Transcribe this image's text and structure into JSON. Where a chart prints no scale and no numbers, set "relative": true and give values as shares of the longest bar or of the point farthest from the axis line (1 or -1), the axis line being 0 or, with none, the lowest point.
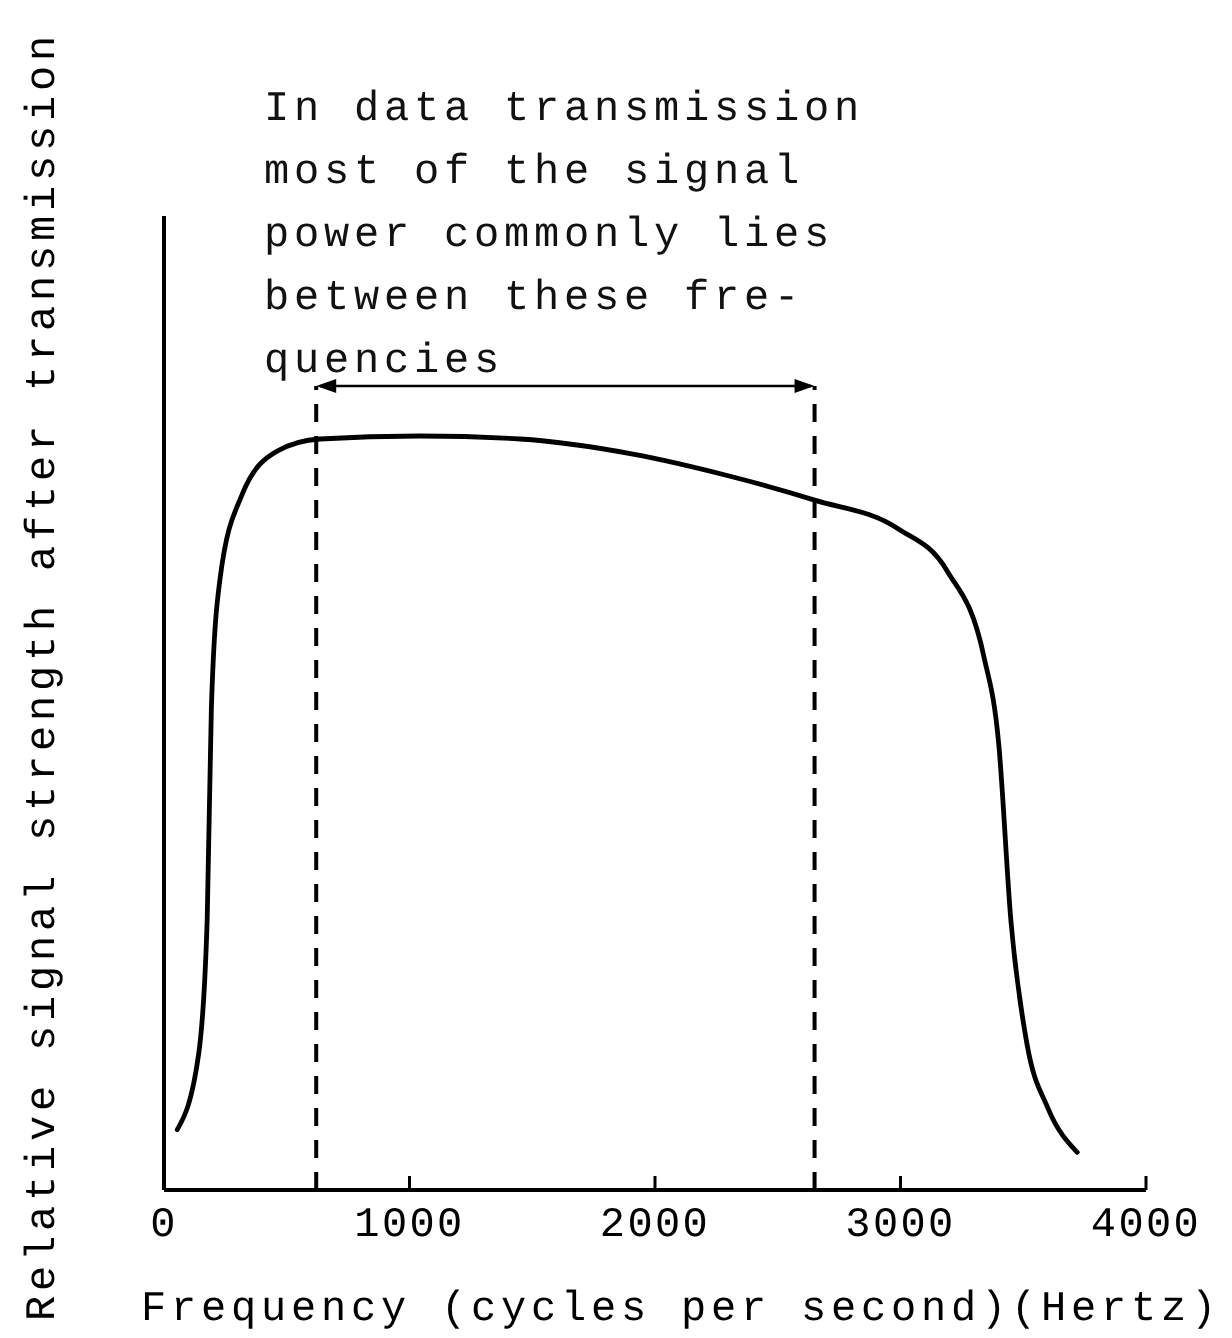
{
  "chart_data": {
    "type": "line",
    "relative": true,
    "xlabel": "Frequency (cycles per second)(Hertz)",
    "ylabel": "Relative signal strength after transmission",
    "annotations": [
      "In data transmission\nmost of the signal\npower commonly lies\nbetween these fre-\nquencies"
    ],
    "xlim": [
      0,
      4000
    ],
    "xticks": [
      0,
      1000,
      2000,
      3000,
      4000
    ],
    "tick_labels": "x",
    "marker": "none",
    "line_style": "solid",
    "ref_lines": [
      {
        "axis": "x",
        "value": 620,
        "line_style": "dashed",
        "color": "#000000"
      },
      {
        "axis": "x",
        "value": 2650,
        "line_style": "dashed",
        "color": "#000000"
      }
    ],
    "series": [
      {
        "color": "#000000",
        "x": [
          54,
          141,
          176,
          193,
          228,
          315,
          461,
          635,
          1040,
          1450,
          1910,
          2290,
          2650,
          2990,
          3190,
          3340,
          3400,
          3450,
          3515,
          3600,
          3720
        ],
        "values": [
          0.08,
          0.18,
          0.36,
          0.64,
          0.81,
          0.92,
          0.98,
          0.996,
          1,
          0.996,
          0.976,
          0.948,
          0.915,
          0.877,
          0.821,
          0.707,
          0.592,
          0.356,
          0.194,
          0.109,
          0.05
        ]
      }
    ]
  }
}
